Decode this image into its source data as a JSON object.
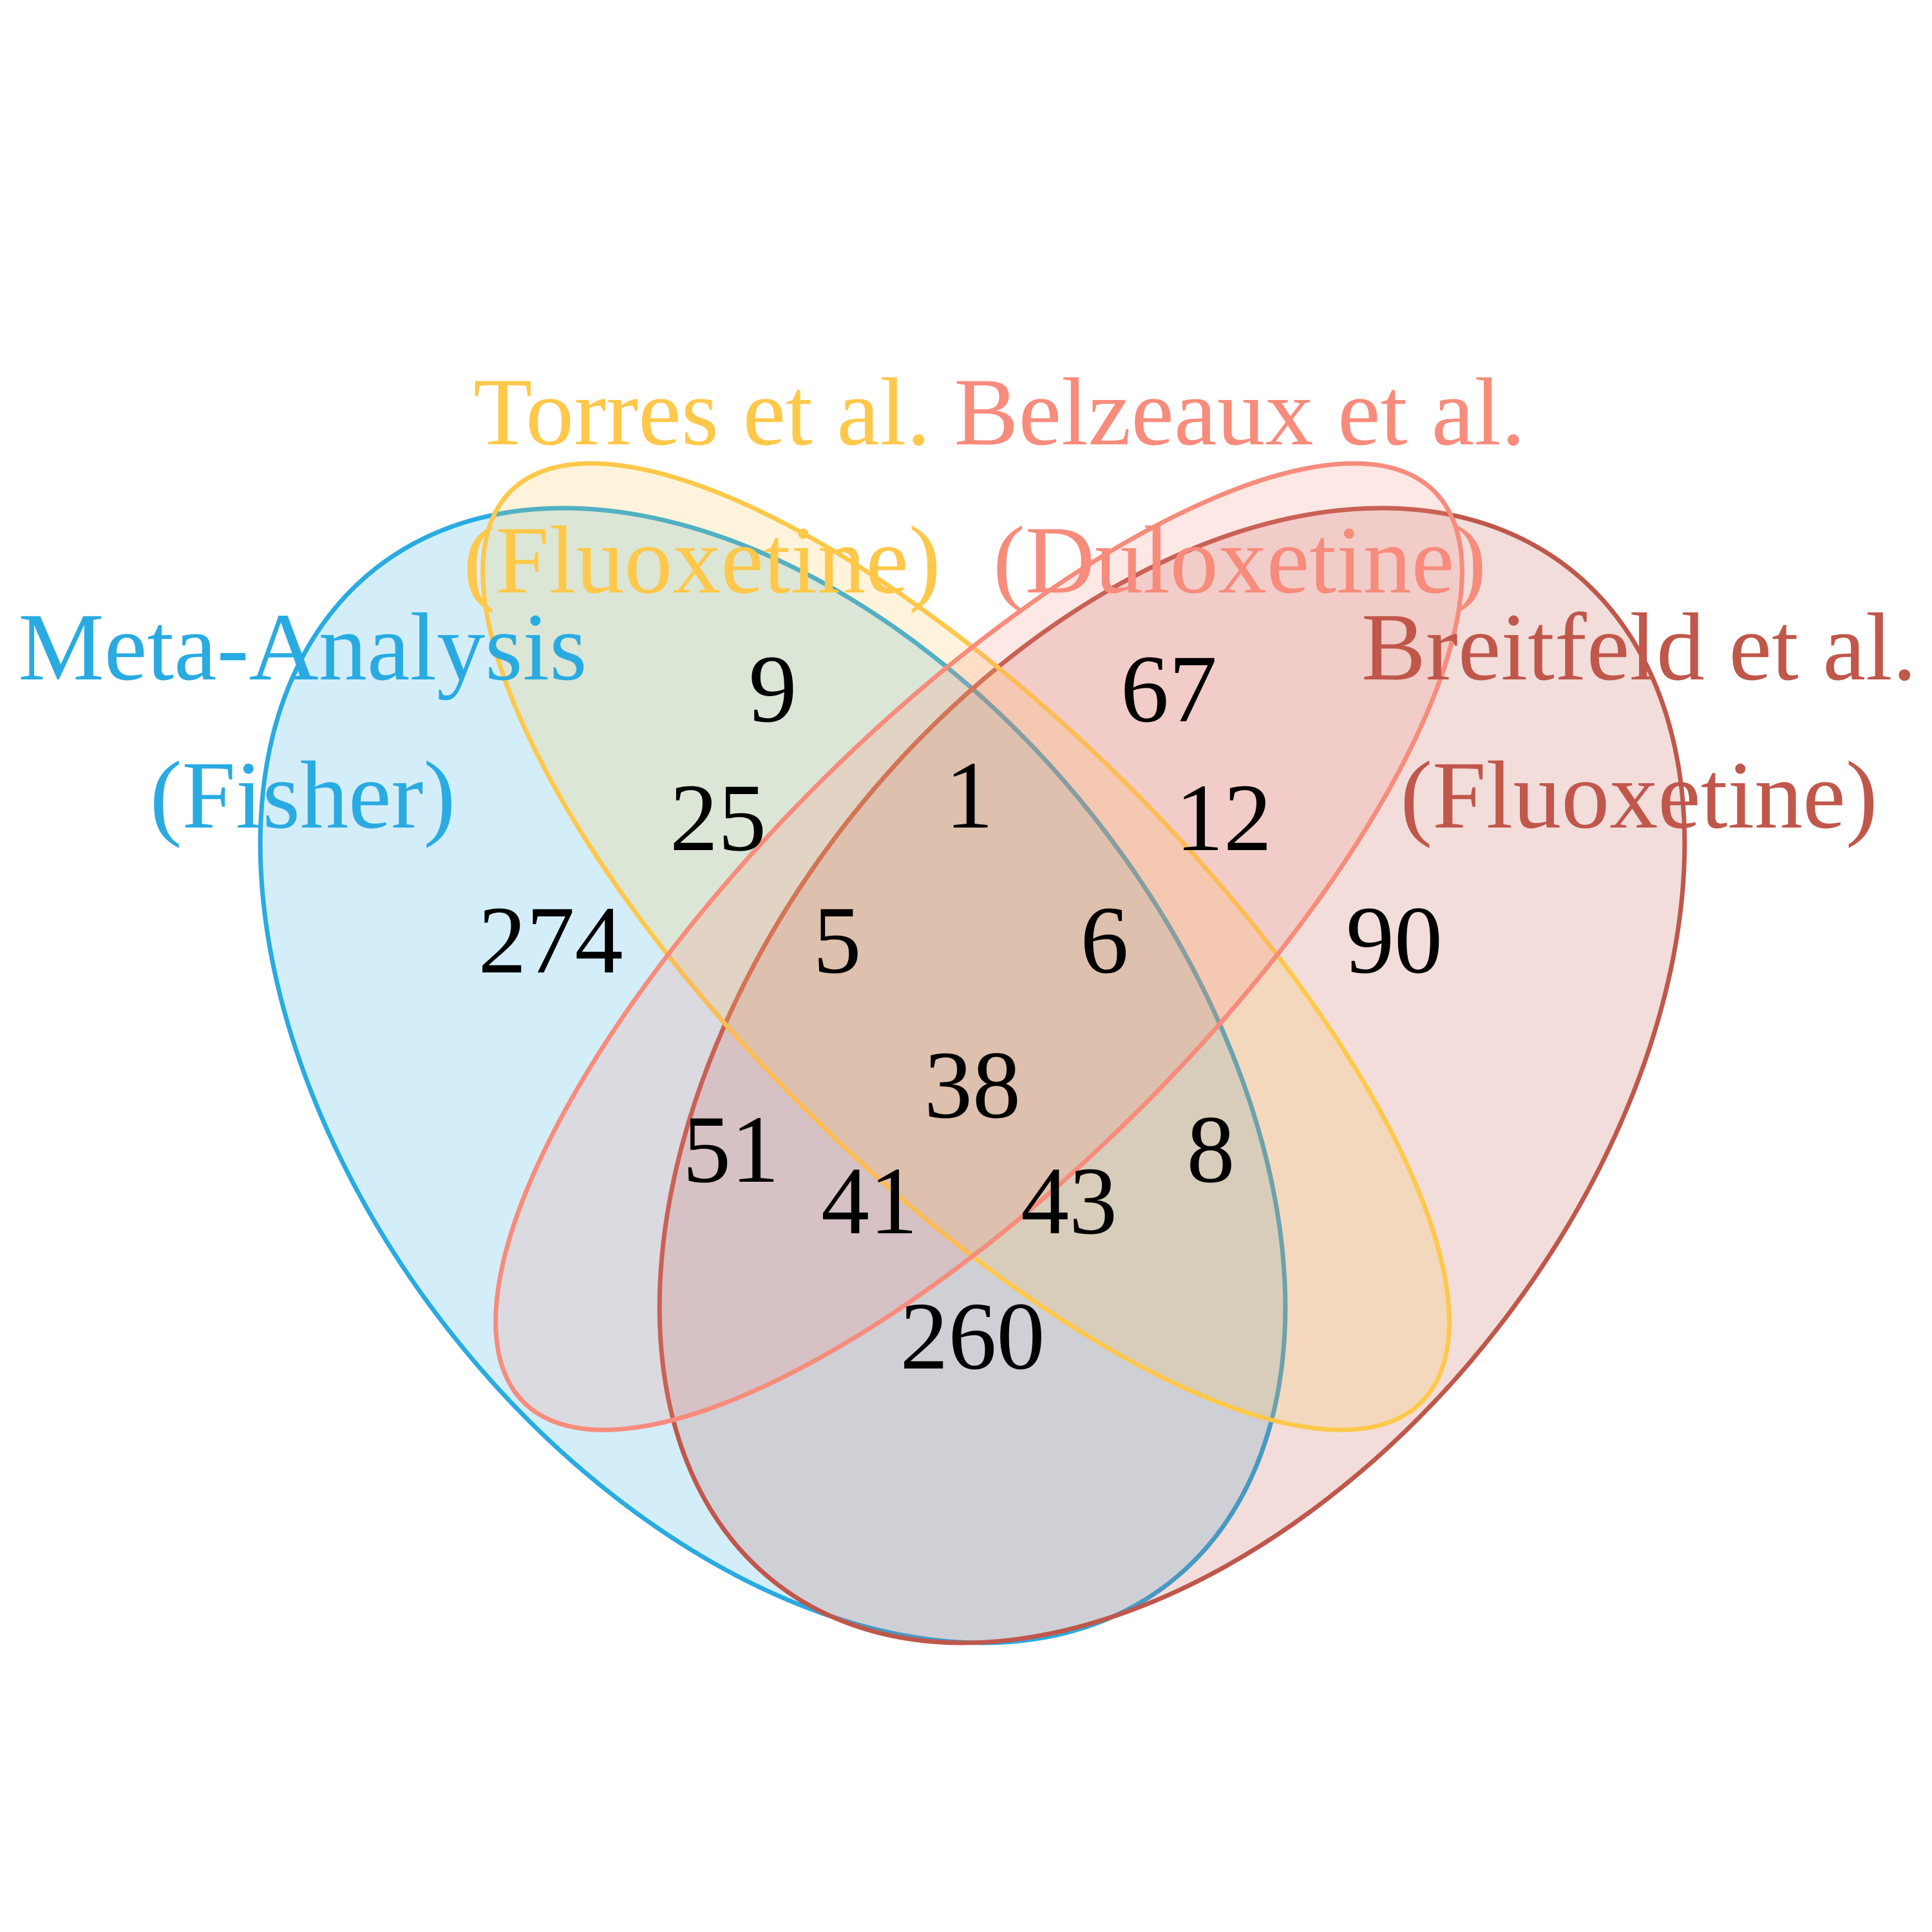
{
  "sets": [
    {
      "key": "meta",
      "name": "Meta-Analysis",
      "subtitle": "(Fisher)",
      "color": "#29ABE2"
    },
    {
      "key": "torres",
      "name": "Torres et al.",
      "subtitle": "(Fluoxetine)",
      "color": "#FFC84A"
    },
    {
      "key": "belzeaux",
      "name": "Belzeaux et al.",
      "subtitle": "(Duloxetine)",
      "color": "#F78C7C"
    },
    {
      "key": "breitfeld",
      "name": "Breitfeld et al.",
      "subtitle": "(Fluoxetine)",
      "color": "#C0574B"
    }
  ],
  "regions": {
    "meta_only": "274",
    "torres_only": "9",
    "belzeaux_only": "67",
    "breitfeld_only": "90",
    "meta_torres": "25",
    "torres_belzeaux": "1",
    "belzeaux_breitfeld": "12",
    "meta_torres_belzeaux": "5",
    "torres_belzeaux_breitfeld": "6",
    "all_four": "38",
    "meta_belzeaux": "51",
    "torres_breitfeld": "8",
    "meta_belzeaux_breitfeld": "41",
    "meta_torres_breitfeld": "43",
    "meta_breitfeld": "260"
  }
}
